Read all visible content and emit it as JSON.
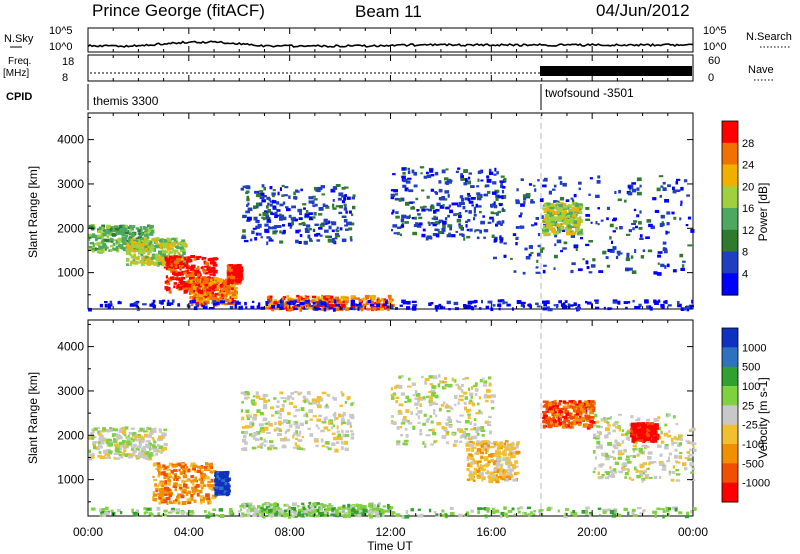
{
  "header": {
    "station": "Prince George (fitACF)",
    "beam": "Beam 11",
    "date": "04/Jun/2012"
  },
  "top_panels": {
    "nsky_label": "N.Sky",
    "nsearch_label": "N.Search",
    "nsky_ticks": [
      "10^5",
      "10^0"
    ],
    "nsearch_ticks": [
      "10^5",
      "10^0"
    ],
    "freq_label": "Freq.",
    "freq_unit": "[MHz]",
    "freq_ticks": [
      "18",
      "8"
    ],
    "nave_label": "Nave",
    "nave_ticks": [
      "60",
      "0"
    ],
    "cpid_label": "CPID",
    "cpid_segments": [
      {
        "name": "themis 3300",
        "start_hour": 0
      },
      {
        "name": "twofsound -3501",
        "start_hour": 18
      }
    ]
  },
  "chart_data": [
    {
      "type": "heatmap",
      "name": "power",
      "xlabel": "Time UT",
      "ylabel": "Slant Range [km]",
      "x_ticks": [
        "00:00",
        "04:00",
        "08:00",
        "12:00",
        "16:00",
        "20:00",
        "00:00"
      ],
      "x_range_hours": [
        0,
        24
      ],
      "y_range_km": [
        180,
        4600
      ],
      "y_ticks": [
        1000,
        2000,
        3000,
        4000
      ],
      "colorbar_label": "Power [dB]",
      "colorbar_ticks": [
        "28",
        "24",
        "20",
        "16",
        "12",
        "8",
        "4"
      ],
      "colorbar_colors": [
        "#0000ff",
        "#1f3fc0",
        "#2f7a2f",
        "#4fa860",
        "#a0d040",
        "#f0b000",
        "#f07000",
        "#ff0000"
      ],
      "echo_regions": [
        {
          "t": [
            0.0,
            2.5
          ],
          "r": [
            1500,
            2100
          ],
          "level": 3
        },
        {
          "t": [
            1.5,
            3.8
          ],
          "r": [
            1200,
            1800
          ],
          "level": 4
        },
        {
          "t": [
            3.0,
            5.0
          ],
          "r": [
            600,
            1400
          ],
          "level": 7
        },
        {
          "t": [
            4.0,
            5.8
          ],
          "r": [
            300,
            900
          ],
          "level": 6
        },
        {
          "t": [
            5.5,
            6.0
          ],
          "r": [
            800,
            1200
          ],
          "level": 7
        },
        {
          "t": [
            6.0,
            10.5
          ],
          "r": [
            1700,
            3000
          ],
          "level": 1
        },
        {
          "t": [
            7.0,
            12.0
          ],
          "r": [
            200,
            500
          ],
          "level": 6
        },
        {
          "t": [
            12.0,
            16.5
          ],
          "r": [
            1800,
            3400
          ],
          "level": 1
        },
        {
          "t": [
            16.0,
            24.0
          ],
          "r": [
            1000,
            3200
          ],
          "level": 1
        },
        {
          "t": [
            18.0,
            19.5
          ],
          "r": [
            1900,
            2600
          ],
          "level": 4
        },
        {
          "t": [
            0.0,
            24.0
          ],
          "r": [
            200,
            400
          ],
          "level": 0
        }
      ]
    },
    {
      "type": "heatmap",
      "name": "velocity",
      "xlabel": "Time UT",
      "ylabel": "Slant Range [km]",
      "x_ticks": [
        "00:00",
        "04:00",
        "08:00",
        "12:00",
        "16:00",
        "20:00",
        "00:00"
      ],
      "x_range_hours": [
        0,
        24
      ],
      "y_range_km": [
        180,
        4600
      ],
      "y_ticks": [
        1000,
        2000,
        3000,
        4000
      ],
      "colorbar_label": "Velocity [m s-1]",
      "colorbar_ticks": [
        "1000",
        "500",
        "100",
        "25",
        "-25",
        "-100",
        "-500",
        "-1000"
      ],
      "colorbar_colors": [
        "#ff0000",
        "#f05000",
        "#f09000",
        "#f0c030",
        "#c8c8c8",
        "#80d040",
        "#30a030",
        "#3070c0",
        "#1030c0"
      ],
      "echo_regions": [
        {
          "t": [
            0.0,
            3.0
          ],
          "r": [
            1500,
            2200
          ],
          "level": 4
        },
        {
          "t": [
            2.5,
            5.0
          ],
          "r": [
            500,
            1400
          ],
          "level": 2
        },
        {
          "t": [
            5.0,
            5.5
          ],
          "r": [
            700,
            1200
          ],
          "level": 8
        },
        {
          "t": [
            6.0,
            10.5
          ],
          "r": [
            1700,
            3000
          ],
          "level": 4
        },
        {
          "t": [
            6.0,
            12.0
          ],
          "r": [
            200,
            500
          ],
          "level": 5
        },
        {
          "t": [
            12.0,
            16.0
          ],
          "r": [
            1800,
            3400
          ],
          "level": 4
        },
        {
          "t": [
            15.0,
            17.0
          ],
          "r": [
            1000,
            1900
          ],
          "level": 3
        },
        {
          "t": [
            18.0,
            20.0
          ],
          "r": [
            2200,
            2800
          ],
          "level": 1
        },
        {
          "t": [
            20.0,
            24.0
          ],
          "r": [
            1000,
            2500
          ],
          "level": 4
        },
        {
          "t": [
            21.5,
            22.5
          ],
          "r": [
            1900,
            2300
          ],
          "level": 0
        },
        {
          "t": [
            0.0,
            24.0
          ],
          "r": [
            200,
            400
          ],
          "level": 5
        }
      ]
    }
  ]
}
